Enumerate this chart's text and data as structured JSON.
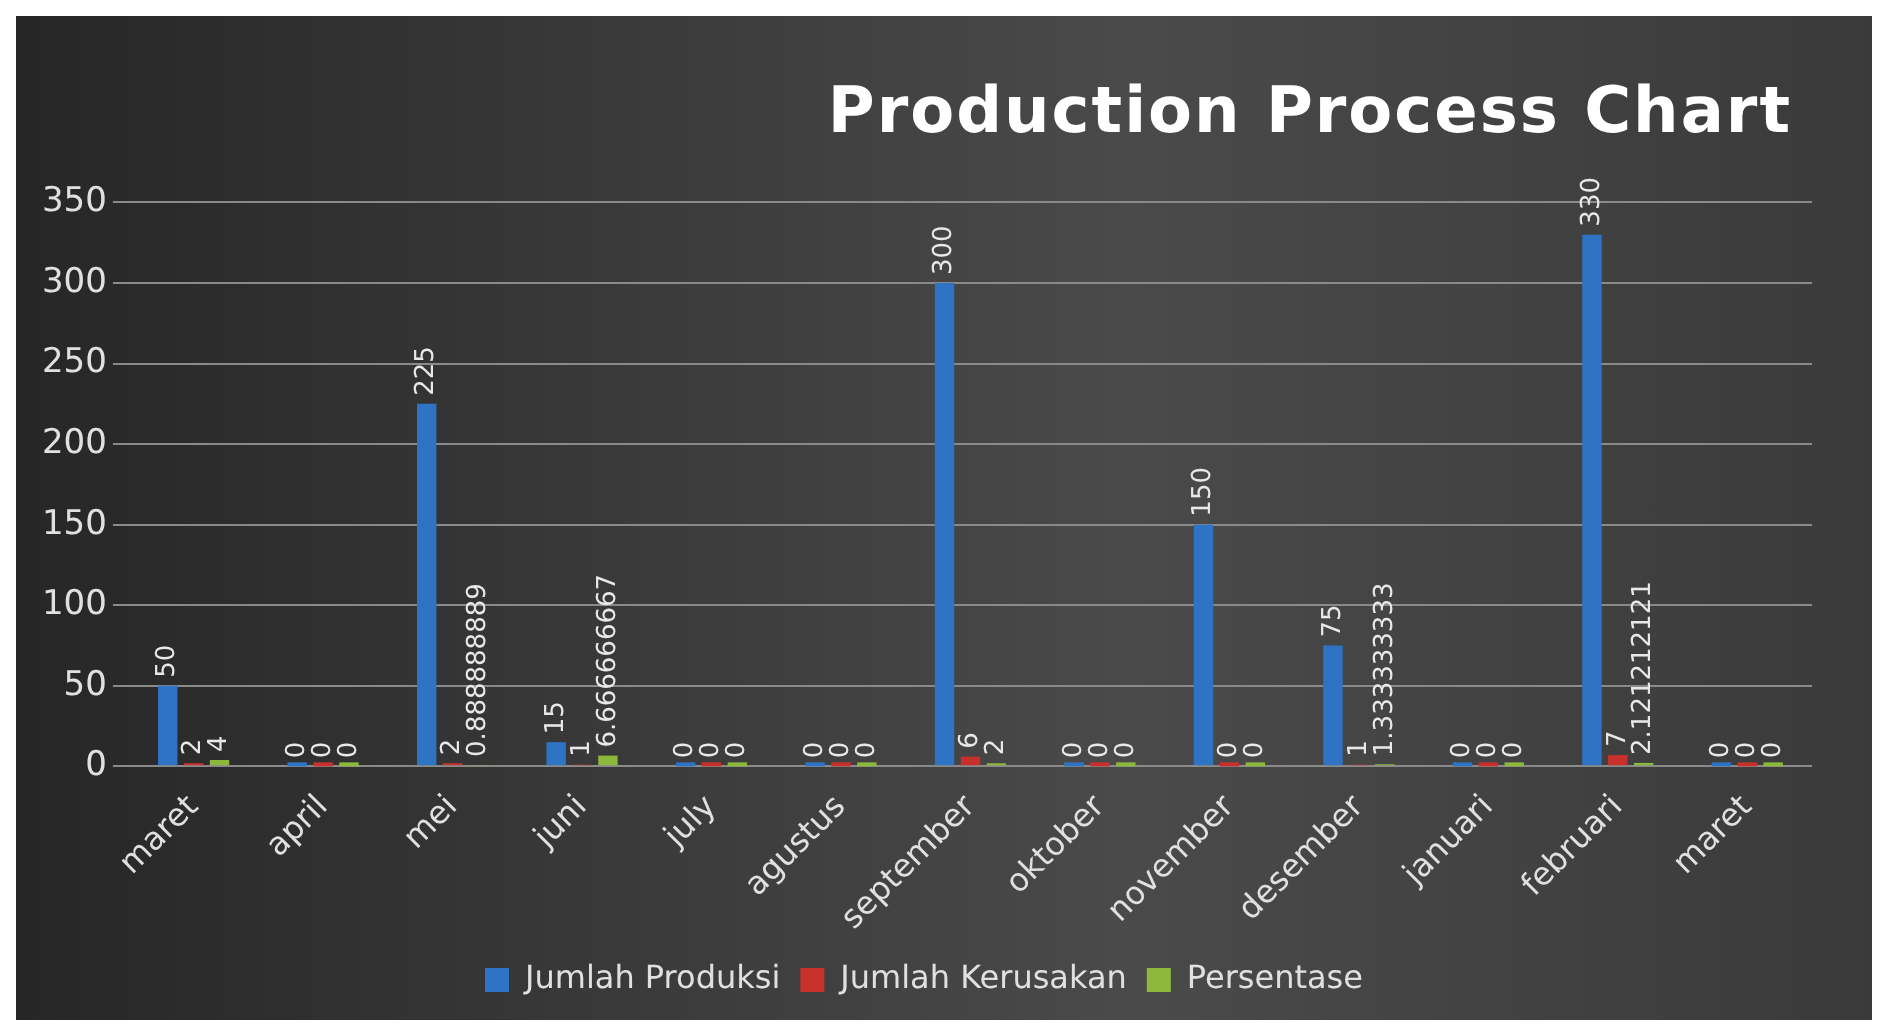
{
  "chart_data": {
    "type": "bar",
    "title": "Production Process Chart",
    "categories": [
      "maret",
      "april",
      "mei",
      "juni",
      "july",
      "agustus",
      "september",
      "oktober",
      "november",
      "desember",
      "januari",
      "februari",
      "maret"
    ],
    "series": [
      {
        "name": "Jumlah Produksi",
        "color": "#2f73c4",
        "values": [
          50,
          0,
          225,
          15,
          0,
          0,
          300,
          0,
          150,
          75,
          0,
          330,
          0
        ]
      },
      {
        "name": "Jumlah Kerusakan",
        "color": "#c8302c",
        "values": [
          2,
          0,
          2,
          1,
          0,
          0,
          6,
          0,
          0,
          1,
          0,
          7,
          0
        ]
      },
      {
        "name": "Persentase",
        "color": "#8cb83c",
        "values": [
          4,
          0,
          0.888888889,
          6.666666667,
          0,
          0,
          2,
          0,
          0,
          1.333333333,
          0,
          2.121212121,
          0
        ]
      }
    ],
    "ylim": [
      0,
      350
    ],
    "yticks": [
      0,
      50,
      100,
      150,
      200,
      250,
      300,
      350
    ],
    "grid": "y",
    "legend": "bottom",
    "data_labels": true
  }
}
